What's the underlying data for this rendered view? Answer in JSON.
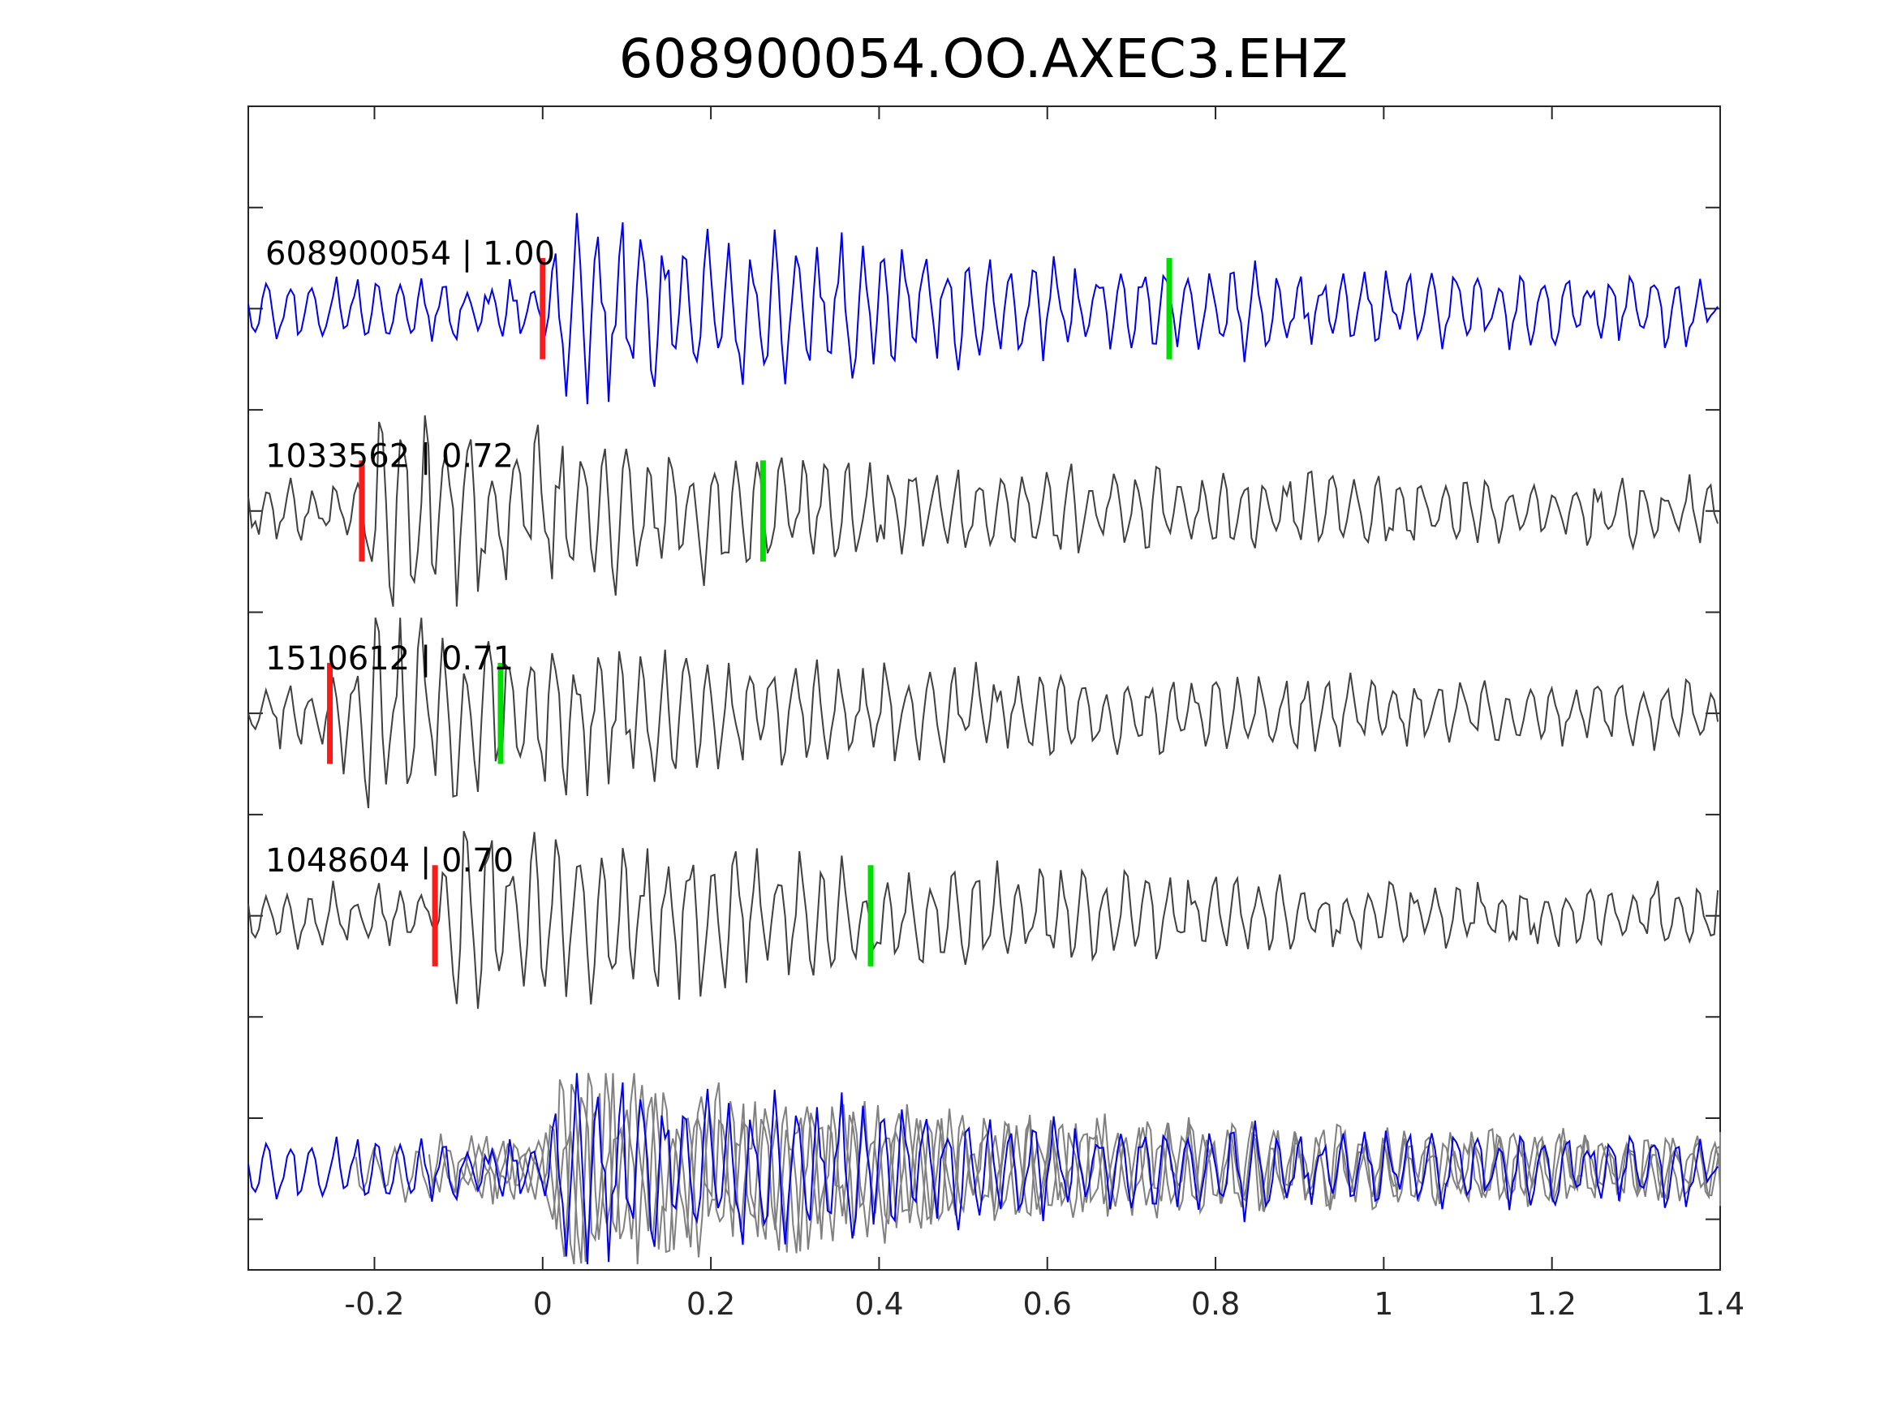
{
  "chart_data": {
    "type": "line",
    "title": "608900054.OO.AXEC3.EHZ",
    "xlabel": "",
    "ylabel": "",
    "xlim": [
      -0.35,
      1.4
    ],
    "ylim": [
      0,
      5.75
    ],
    "xticks": [
      -0.2,
      0,
      0.2,
      0.4,
      0.6,
      0.8,
      1,
      1.2,
      1.4
    ],
    "xtick_labels": [
      "-0.2",
      "0",
      "0.2",
      "0.4",
      "0.6",
      "0.8",
      "1",
      "1.2",
      "1.4"
    ],
    "yticks": [
      0.25,
      0.75,
      1.25,
      1.75,
      2.25,
      2.75,
      3.25,
      3.75,
      4.25,
      4.75,
      5.25
    ],
    "grid": false,
    "colors": {
      "reference_trace": "#0000ee",
      "match_trace": "#404040",
      "overlay_trace": "#808080",
      "p_pick": "#ff1a1a",
      "s_pick": "#00dd00",
      "axis": "#262626"
    },
    "series": [
      {
        "label": "608900054 | 1.00",
        "baseline": 4.75,
        "p_pick": 0.0,
        "s_pick": 0.745,
        "reference": true,
        "amplitude": 0.45,
        "seed": 11
      },
      {
        "label": "1033562 | 0.72",
        "baseline": 3.75,
        "p_pick": -0.215,
        "s_pick": 0.262,
        "reference": false,
        "amplitude": 0.45,
        "seed": 23
      },
      {
        "label": "1510612 | 0.71",
        "baseline": 2.75,
        "p_pick": -0.253,
        "s_pick": -0.05,
        "reference": false,
        "amplitude": 0.45,
        "seed": 37
      },
      {
        "label": "1048604 | 0.70",
        "baseline": 1.75,
        "p_pick": -0.128,
        "s_pick": 0.39,
        "reference": false,
        "amplitude": 0.45,
        "seed": 51
      }
    ],
    "overlay": {
      "baseline": 0.5
    }
  }
}
